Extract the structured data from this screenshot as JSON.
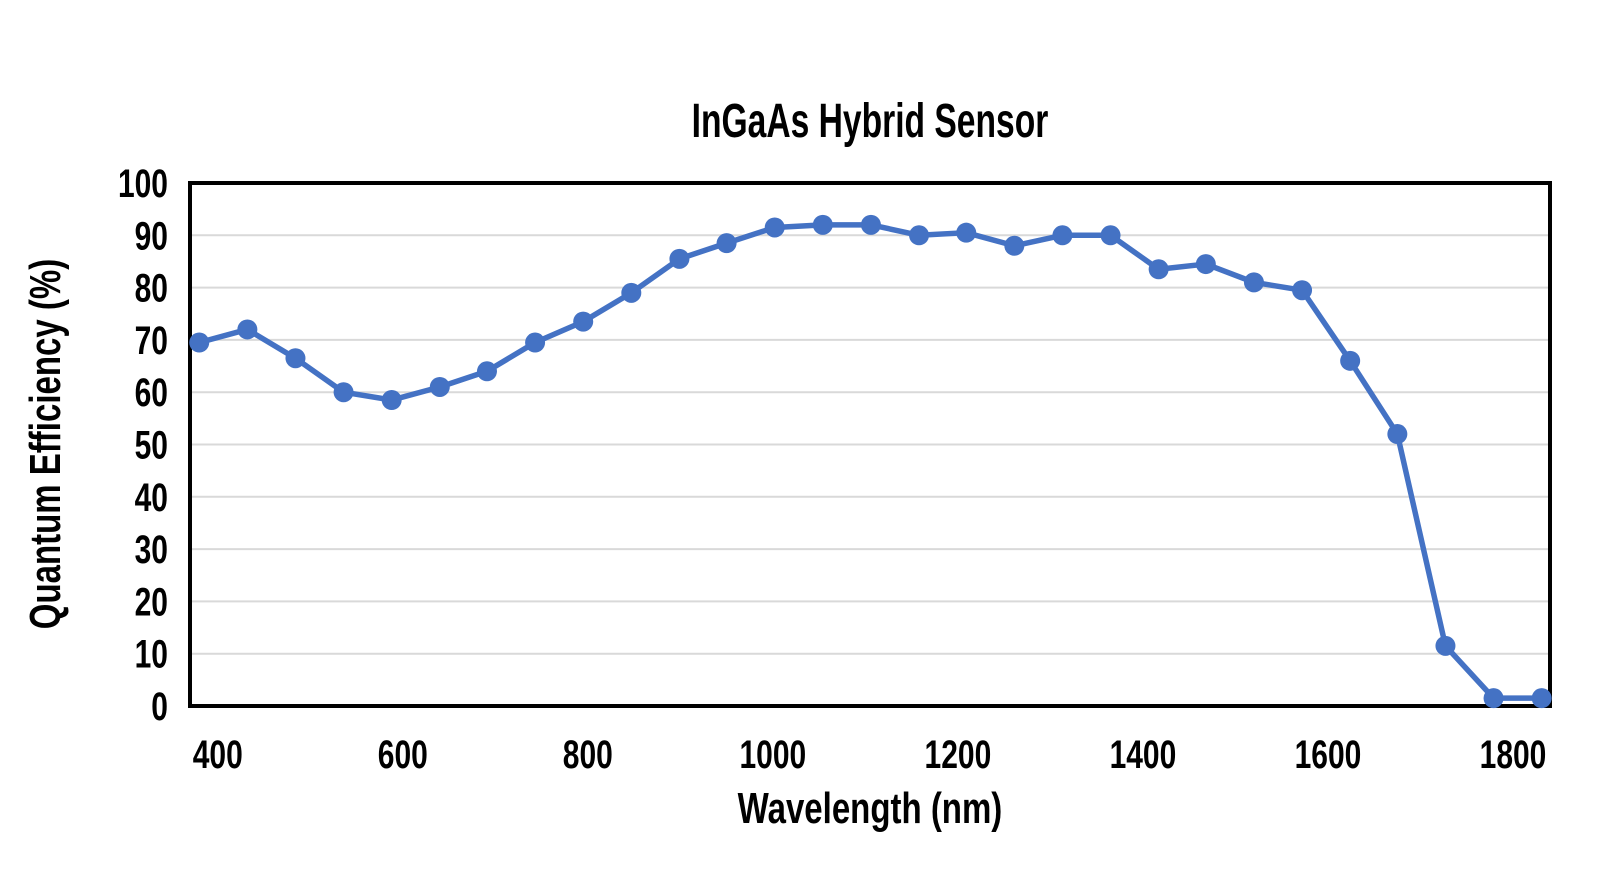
{
  "chart_data": {
    "type": "line",
    "title": "InGaAs Hybrid Sensor",
    "xlabel": "Wavelength (nm)",
    "ylabel": "Quantum Efficiency (%)",
    "xlim": [
      370,
      1840
    ],
    "ylim": [
      0,
      100
    ],
    "xticks": [
      400,
      600,
      800,
      1000,
      1200,
      1400,
      1600,
      1800
    ],
    "yticks": [
      0,
      10,
      20,
      30,
      40,
      50,
      60,
      70,
      80,
      90,
      100
    ],
    "grid": "horizontal-only",
    "legend_position": "none",
    "series": [
      {
        "color": "#4472C4",
        "marker": "circle",
        "x": [
          380,
          432,
          484,
          536,
          588,
          640,
          691,
          743,
          795,
          847,
          899,
          950,
          1002,
          1054,
          1106,
          1158,
          1209,
          1261,
          1313,
          1365,
          1417,
          1468,
          1520,
          1572,
          1624,
          1675,
          1727,
          1779,
          1831
        ],
        "y": [
          69.5,
          72,
          66.5,
          60,
          58.5,
          61,
          64,
          69.5,
          73.5,
          79,
          85.5,
          88.5,
          91.5,
          92,
          92,
          90,
          90.5,
          88,
          90,
          90,
          83.5,
          84.5,
          81,
          79.5,
          66,
          52,
          11.5,
          1.5,
          1.5
        ]
      }
    ]
  },
  "styles": {
    "background": "#FFFFFF",
    "text_color": "#000000",
    "grid_color": "#D9D9D9",
    "axis_border_color": "#000000",
    "series_color": "#4472C4"
  }
}
